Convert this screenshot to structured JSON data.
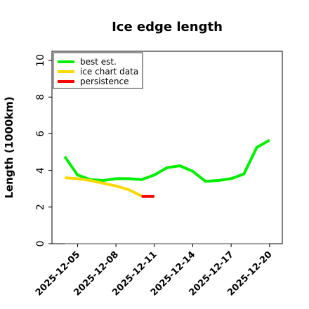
{
  "chart_data": {
    "type": "line",
    "title": "Ice edge length",
    "ylabel": "Length (1000km)",
    "xlabel": "",
    "ylim": [
      0,
      10.5
    ],
    "yticks": [
      0,
      2,
      4,
      6,
      8,
      10
    ],
    "xlim": [
      "2025-12-03",
      "2025-12-21"
    ],
    "xticks": [
      "2025-12-05",
      "2025-12-08",
      "2025-12-11",
      "2025-12-14",
      "2025-12-17",
      "2025-12-20"
    ],
    "grid": false,
    "legend_position": "top-left",
    "series": [
      {
        "name": "best est.",
        "color": "#00ee00",
        "x": [
          "2025-12-04",
          "2025-12-05",
          "2025-12-06",
          "2025-12-07",
          "2025-12-08",
          "2025-12-09",
          "2025-12-10",
          "2025-12-11",
          "2025-12-12",
          "2025-12-13",
          "2025-12-14",
          "2025-12-15",
          "2025-12-16",
          "2025-12-17",
          "2025-12-18",
          "2025-12-19",
          "2025-12-20"
        ],
        "y": [
          4.75,
          3.75,
          3.5,
          3.45,
          3.55,
          3.55,
          3.5,
          3.75,
          4.15,
          4.25,
          3.95,
          3.4,
          3.45,
          3.55,
          3.8,
          5.25,
          5.65
        ]
      },
      {
        "name": "ice chart data",
        "color": "#ffd700",
        "x": [
          "2025-12-04",
          "2025-12-05",
          "2025-12-06",
          "2025-12-07",
          "2025-12-08",
          "2025-12-09",
          "2025-12-10"
        ],
        "y": [
          3.6,
          3.55,
          3.45,
          3.3,
          3.15,
          2.95,
          2.6
        ]
      },
      {
        "name": "persistence",
        "color": "#ff0000",
        "x": [
          "2025-12-10",
          "2025-12-11"
        ],
        "y": [
          2.58,
          2.58
        ]
      }
    ],
    "reference_line": {
      "y": 0,
      "color": "#808080"
    }
  }
}
